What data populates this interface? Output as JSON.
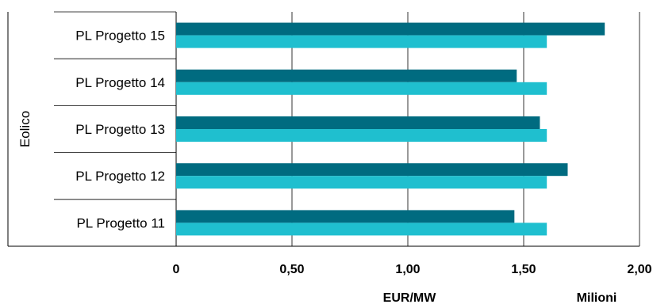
{
  "chart_data": {
    "type": "bar",
    "orientation": "horizontal",
    "group_label": "Eolico",
    "categories": [
      "PL Progetto 15",
      "PL Progetto 14",
      "PL Progetto 13",
      "PL Progetto 12",
      "PL Progetto 11"
    ],
    "series": [
      {
        "color": "#006b80",
        "values": [
          1.85,
          1.47,
          1.57,
          1.69,
          1.46
        ]
      },
      {
        "color": "#1fbfcf",
        "values": [
          1.6,
          1.6,
          1.6,
          1.6,
          1.6
        ]
      }
    ],
    "xlim": [
      0,
      2.0
    ],
    "x_ticks": [
      0,
      0.5,
      1.0,
      1.5,
      2.0
    ],
    "x_tick_labels": [
      "0",
      "0,50",
      "1,00",
      "1,50",
      "2,00"
    ],
    "xlabel": "EUR/MW",
    "x_unit_label": "Milioni",
    "grid": "vertical"
  }
}
